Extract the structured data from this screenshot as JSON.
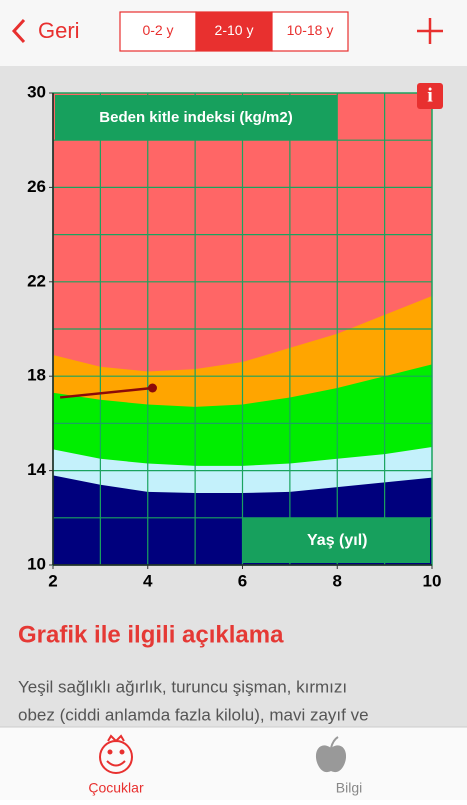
{
  "header": {
    "back": "Geri",
    "segments": [
      "0-2 y",
      "2-10 y",
      "10-18 y"
    ],
    "selected": 1
  },
  "chart_data": {
    "type": "area",
    "title": "Beden kitle indeksi (kg/m2)",
    "xlabel": "Yaş (yıl)",
    "xlim": [
      2,
      10
    ],
    "ylim": [
      10,
      30
    ],
    "xticks": [
      2,
      4,
      6,
      8,
      10
    ],
    "yticks": [
      10,
      14,
      18,
      22,
      26,
      30
    ],
    "xgrid": [
      3,
      4,
      5,
      6,
      7,
      8,
      9
    ],
    "ygrid": [
      12,
      14,
      16,
      18,
      20,
      22,
      24,
      26,
      28
    ],
    "background": "#ff6666",
    "grid_color": "#1aa35e",
    "x": [
      2,
      3,
      4,
      5,
      6,
      7,
      8,
      9,
      10
    ],
    "series": [
      {
        "color": "#ffa500",
        "values": [
          18.9,
          18.4,
          18.2,
          18.3,
          18.6,
          19.2,
          19.8,
          20.6,
          21.4
        ]
      },
      {
        "color": "#00ee00",
        "values": [
          17.3,
          17.0,
          16.8,
          16.7,
          16.8,
          17.1,
          17.5,
          18.0,
          18.5
        ]
      },
      {
        "color": "#c4f1fb",
        "values": [
          14.9,
          14.5,
          14.3,
          14.2,
          14.2,
          14.3,
          14.5,
          14.7,
          15.0
        ]
      },
      {
        "color": "#00007d",
        "values": [
          13.8,
          13.4,
          13.1,
          13.05,
          13.05,
          13.1,
          13.3,
          13.5,
          13.7
        ]
      }
    ],
    "measurement": {
      "x": [
        2.15,
        4.1
      ],
      "values": [
        17.1,
        17.5
      ],
      "color": "#8b0a0a"
    }
  },
  "description": {
    "heading": "Grafik ile ilgili açıklama",
    "lines": [
      "Yeşil sağlıklı ağırlık, turuncu şişman, kırmızı",
      "obez (ciddi anlamda fazla kilolu), mavi zayıf ve"
    ]
  },
  "tabs": [
    {
      "label": "Çocuklar"
    },
    {
      "label": "Bilgi"
    }
  ]
}
